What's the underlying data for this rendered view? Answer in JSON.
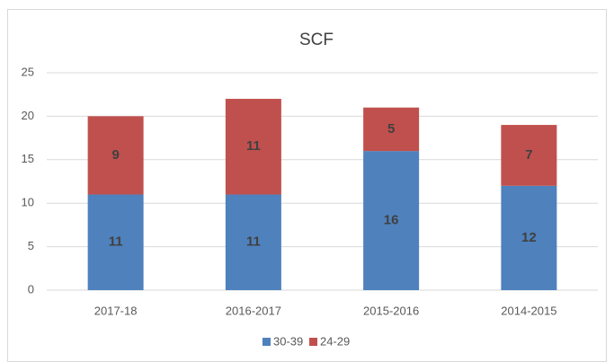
{
  "chart_data": {
    "type": "stacked_bar",
    "title": "SCF",
    "categories": [
      "2017-18",
      "2016-2017",
      "2015-2016",
      "2014-2015"
    ],
    "series": [
      {
        "name": "30-39",
        "color": "#4f81bd",
        "values": [
          11,
          11,
          16,
          12
        ]
      },
      {
        "name": "24-29",
        "color": "#c0504d",
        "values": [
          9,
          11,
          5,
          7
        ]
      }
    ],
    "ylim": [
      0,
      25
    ],
    "yticks": [
      0,
      5,
      10,
      15,
      20,
      25
    ],
    "grid": true,
    "legend": "bottom"
  }
}
